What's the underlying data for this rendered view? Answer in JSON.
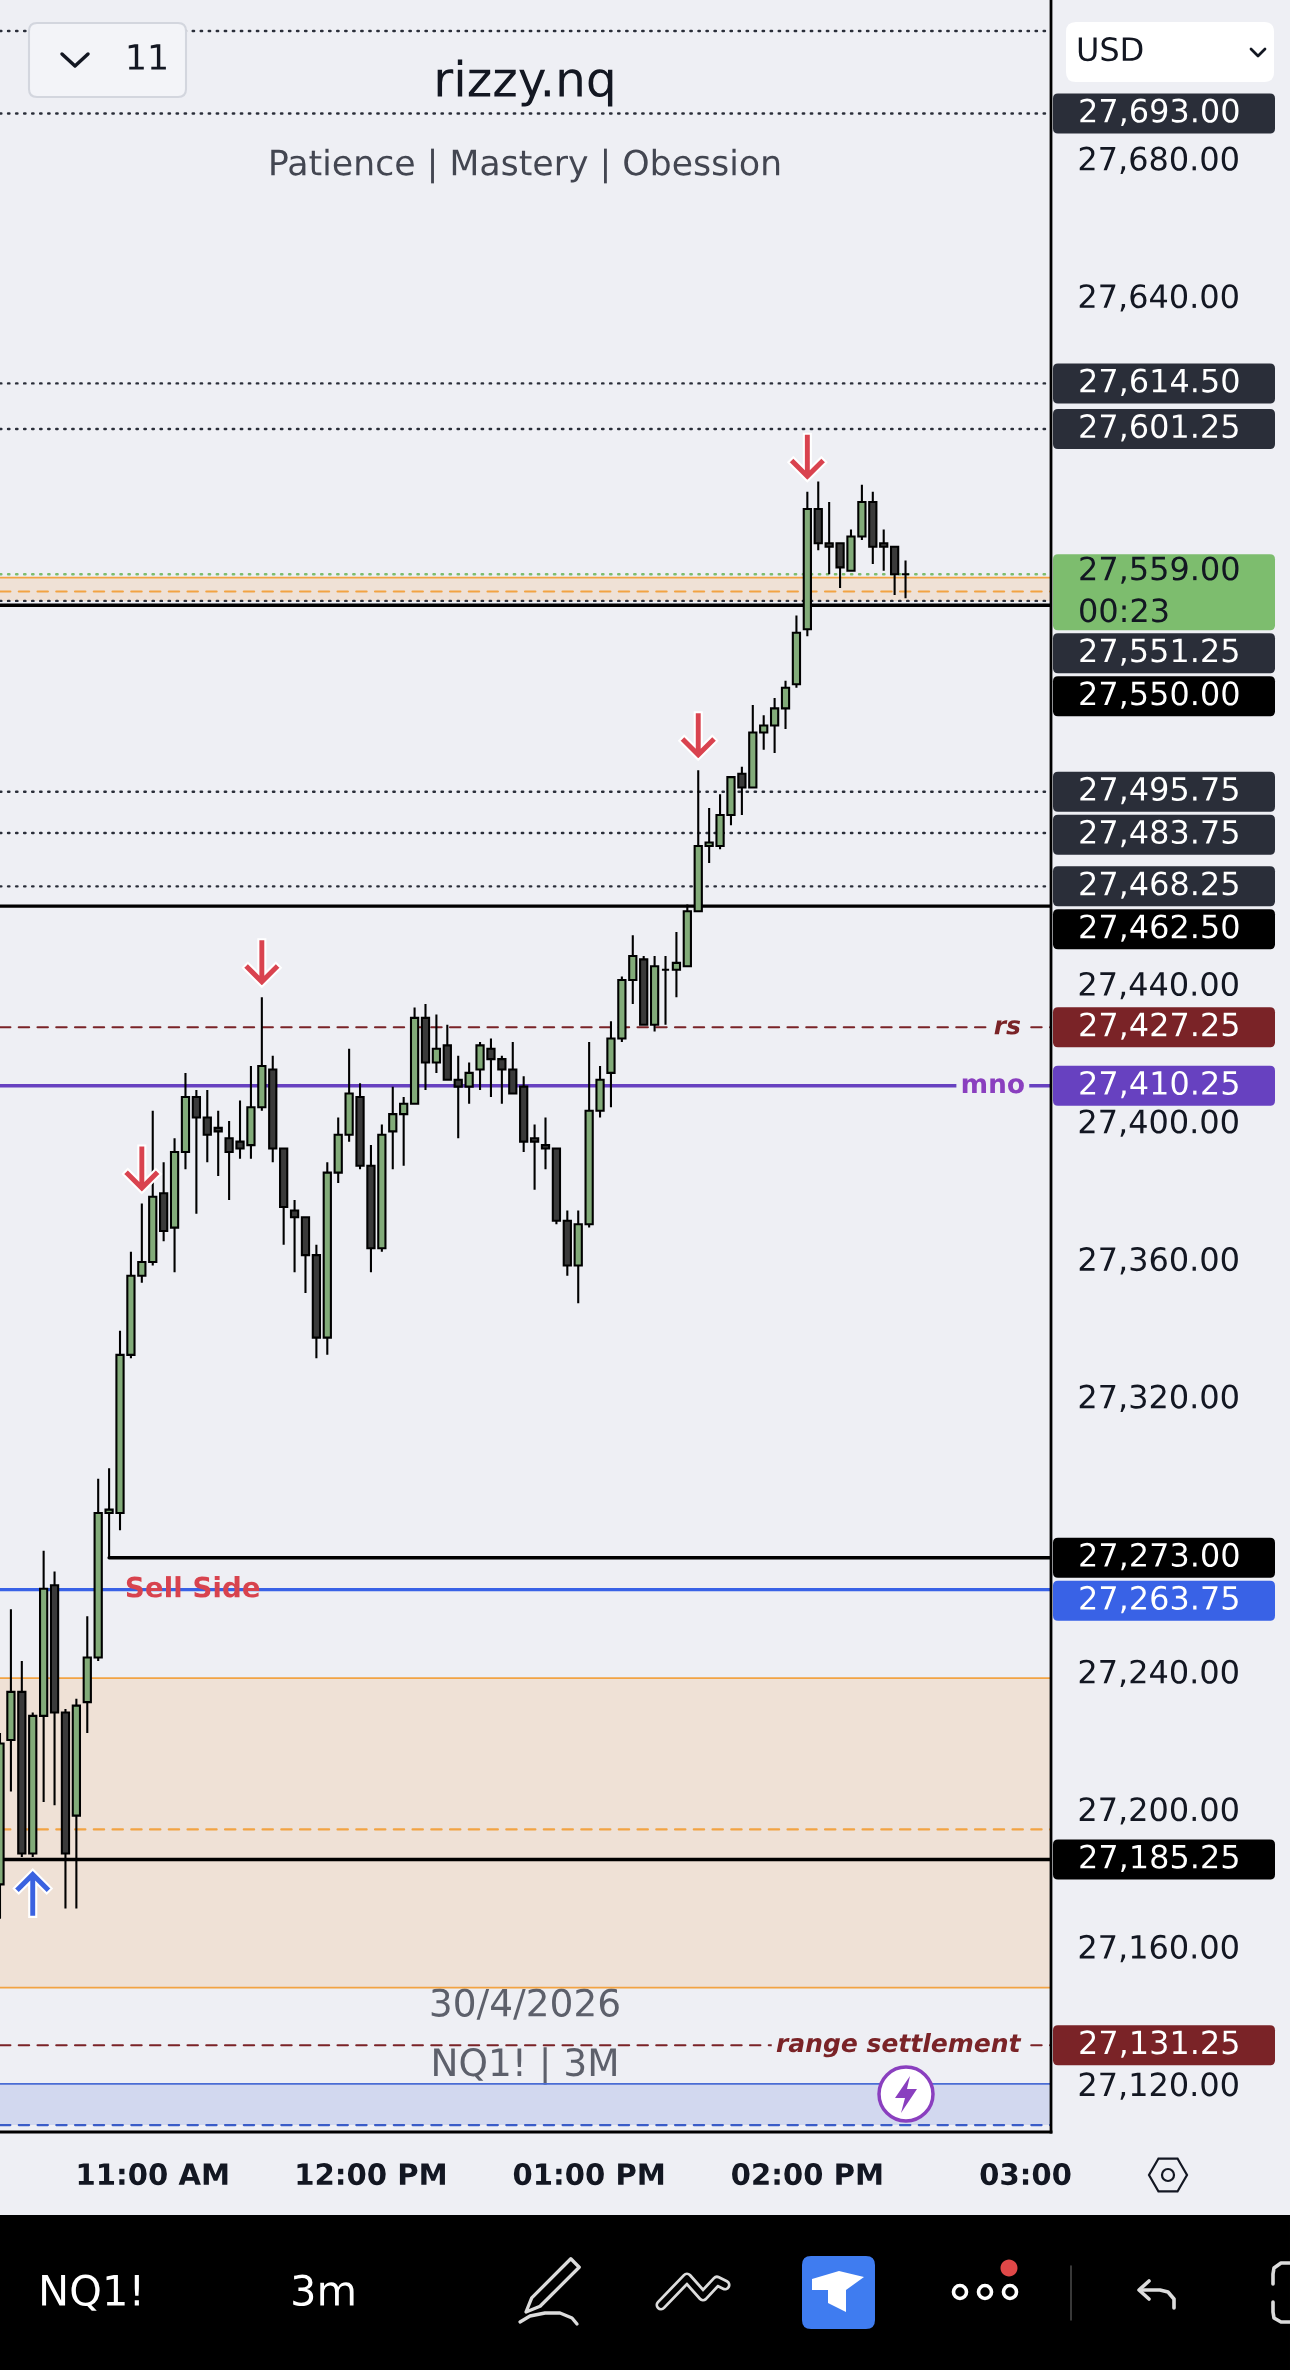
{
  "chart_data": {
    "type": "candlestick",
    "title": "rizzy.nq",
    "subtitle": "Patience | Mastery | Obession",
    "x": [
      "2026-04-30T10:18",
      "2026-04-30T10:21",
      "2026-04-30T10:24",
      "2026-04-30T10:27",
      "2026-04-30T10:30",
      "2026-04-30T10:33",
      "2026-04-30T10:36",
      "2026-04-30T10:39",
      "2026-04-30T10:42",
      "2026-04-30T10:45",
      "2026-04-30T10:48",
      "2026-04-30T10:51",
      "2026-04-30T10:54",
      "2026-04-30T10:57",
      "2026-04-30T11:00",
      "2026-04-30T11:03",
      "2026-04-30T11:06",
      "2026-04-30T11:09",
      "2026-04-30T11:12",
      "2026-04-30T11:15",
      "2026-04-30T11:18",
      "2026-04-30T11:21",
      "2026-04-30T11:24",
      "2026-04-30T11:27",
      "2026-04-30T11:30",
      "2026-04-30T11:33",
      "2026-04-30T11:36",
      "2026-04-30T11:39",
      "2026-04-30T11:42",
      "2026-04-30T11:45",
      "2026-04-30T11:48",
      "2026-04-30T11:51",
      "2026-04-30T11:54",
      "2026-04-30T11:57",
      "2026-04-30T12:00",
      "2026-04-30T12:03",
      "2026-04-30T12:06",
      "2026-04-30T12:09",
      "2026-04-30T12:12",
      "2026-04-30T12:15",
      "2026-04-30T12:18",
      "2026-04-30T12:21",
      "2026-04-30T12:24",
      "2026-04-30T12:27",
      "2026-04-30T12:30",
      "2026-04-30T12:33",
      "2026-04-30T12:36",
      "2026-04-30T12:39",
      "2026-04-30T12:42",
      "2026-04-30T12:45",
      "2026-04-30T12:48",
      "2026-04-30T12:51",
      "2026-04-30T12:54",
      "2026-04-30T12:57",
      "2026-04-30T13:00",
      "2026-04-30T13:03",
      "2026-04-30T13:06",
      "2026-04-30T13:09",
      "2026-04-30T13:12",
      "2026-04-30T13:15",
      "2026-04-30T13:18",
      "2026-04-30T13:21",
      "2026-04-30T13:24",
      "2026-04-30T13:27",
      "2026-04-30T13:30",
      "2026-04-30T13:33",
      "2026-04-30T13:36",
      "2026-04-30T13:39",
      "2026-04-30T13:42",
      "2026-04-30T13:45",
      "2026-04-30T13:48",
      "2026-04-30T13:51",
      "2026-04-30T13:54",
      "2026-04-30T13:57",
      "2026-04-30T14:00",
      "2026-04-30T14:03",
      "2026-04-30T14:06",
      "2026-04-30T14:09",
      "2026-04-30T14:12",
      "2026-04-30T14:15",
      "2026-04-30T14:18",
      "2026-04-30T14:21",
      "2026-04-30T14:24",
      "2026-04-30T14:27"
    ],
    "ohlc": [
      [
        27178,
        27222,
        27168,
        27219
      ],
      [
        27220,
        27258,
        27205,
        27234
      ],
      [
        27234,
        27243,
        27186,
        27187
      ],
      [
        27187,
        27228,
        27186,
        27227
      ],
      [
        27227,
        27275,
        27202,
        27264
      ],
      [
        27265,
        27269,
        27201,
        27228
      ],
      [
        27228,
        27229,
        27171,
        27187
      ],
      [
        27198,
        27232,
        27171,
        27230
      ],
      [
        27231,
        27256,
        27222,
        27244
      ],
      [
        27244,
        27296,
        27243,
        27286
      ],
      [
        27286,
        27299,
        27273,
        27287
      ],
      [
        27286,
        27339,
        27281,
        27332
      ],
      [
        27332,
        27362,
        27331,
        27355
      ],
      [
        27355,
        27376,
        27353,
        27359
      ],
      [
        27359,
        27403,
        27358,
        27378
      ],
      [
        27379,
        27388,
        27365,
        27368
      ],
      [
        27369,
        27395,
        27356,
        27391
      ],
      [
        27391,
        27414,
        27386,
        27407
      ],
      [
        27407,
        27409,
        27373,
        27401
      ],
      [
        27401,
        27409,
        27388,
        27396
      ],
      [
        27398,
        27403,
        27384,
        27397
      ],
      [
        27395,
        27400,
        27377,
        27391
      ],
      [
        27394,
        27406,
        27389,
        27392
      ],
      [
        27393,
        27416,
        27389,
        27404
      ],
      [
        27404,
        27436,
        27403,
        27416
      ],
      [
        27415,
        27419,
        27388,
        27392
      ],
      [
        27392,
        27392,
        27364,
        27375
      ],
      [
        27374,
        27377,
        27356,
        27372
      ],
      [
        27372,
        27372,
        27350,
        27361
      ],
      [
        27361,
        27364,
        27331,
        27337
      ],
      [
        27337,
        27388,
        27332,
        27385
      ],
      [
        27385,
        27401,
        27382,
        27396
      ],
      [
        27396,
        27421,
        27394,
        27408
      ],
      [
        27407,
        27411,
        27386,
        27387
      ],
      [
        27387,
        27393,
        27356,
        27363
      ],
      [
        27363,
        27399,
        27362,
        27396
      ],
      [
        27397,
        27410,
        27386,
        27402
      ],
      [
        27402,
        27407,
        27387,
        27405
      ],
      [
        27405,
        27433,
        27405,
        27430
      ],
      [
        27430,
        27434,
        27409,
        27417
      ],
      [
        27417,
        27431,
        27414,
        27421
      ],
      [
        27422,
        27428,
        27412,
        27412
      ],
      [
        27412,
        27419,
        27395,
        27410
      ],
      [
        27410,
        27417,
        27405,
        27414
      ],
      [
        27415,
        27423,
        27409,
        27422
      ],
      [
        27421,
        27424,
        27407,
        27418
      ],
      [
        27418,
        27419,
        27405,
        27415
      ],
      [
        27415,
        27423,
        27408,
        27408
      ],
      [
        27410,
        27413,
        27391,
        27394
      ],
      [
        27395,
        27399,
        27380,
        27394
      ],
      [
        27393,
        27401,
        27386,
        27392
      ],
      [
        27392,
        27392,
        27370,
        27371
      ],
      [
        27371,
        27374,
        27355,
        27358
      ],
      [
        27358,
        27374,
        27347,
        27370
      ],
      [
        27370,
        27423,
        27369,
        27403
      ],
      [
        27403,
        27416,
        27401,
        27412
      ],
      [
        27414,
        27429,
        27404,
        27424
      ],
      [
        27424,
        27442,
        27423,
        27441
      ],
      [
        27441,
        27454,
        27434,
        27448
      ],
      [
        27447,
        27448,
        27428,
        27428
      ],
      [
        27428,
        27448,
        27426,
        27445
      ],
      [
        27444,
        27448,
        27428,
        27444
      ],
      [
        27444,
        27455,
        27436,
        27446
      ],
      [
        27445,
        27463,
        27445,
        27461
      ],
      [
        27461,
        27502,
        27461,
        27480
      ],
      [
        27480,
        27491,
        27475,
        27481
      ],
      [
        27480,
        27495,
        27479,
        27489
      ],
      [
        27489,
        27500,
        27486,
        27500
      ],
      [
        27501,
        27503,
        27489,
        27497
      ],
      [
        27497,
        27521,
        27497,
        27513
      ],
      [
        27513,
        27518,
        27508,
        27515
      ],
      [
        27515,
        27523,
        27507,
        27520
      ],
      [
        27520,
        27528,
        27514,
        27526
      ],
      [
        27527,
        27547,
        27526,
        27542
      ],
      [
        27543,
        27583,
        27541,
        27578
      ],
      [
        27578,
        27586,
        27566,
        27568
      ],
      [
        27568,
        27580,
        27559,
        27567
      ],
      [
        27568,
        27568,
        27555,
        27561
      ],
      [
        27560,
        27572,
        27560,
        27570
      ],
      [
        27570,
        27585,
        27569,
        27580
      ],
      [
        27580,
        27583,
        27562,
        27567
      ],
      [
        27568,
        27572,
        27560,
        27567
      ],
      [
        27567,
        27567,
        27553,
        27559
      ],
      [
        27559,
        27563,
        27552,
        27559
      ]
    ],
    "series": [
      {
        "type": "line",
        "name": "27,273.00",
        "color": "#000000",
        "x": [
          "2026-04-30T10:48",
          "2026-04-30T15:07"
        ],
        "values": [
          27273,
          27273
        ]
      }
    ],
    "xlim": [
      "2026-04-30T10:18",
      "2026-04-30T15:07"
    ],
    "xticks": [
      {
        "value": "2026-04-30T11:00",
        "label": "11:00 AM"
      },
      {
        "value": "2026-04-30T12:00",
        "label": "12:00 PM"
      },
      {
        "value": "2026-04-30T13:00",
        "label": "01:00 PM"
      },
      {
        "value": "2026-04-30T14:00",
        "label": "02:00 PM"
      },
      {
        "value": "2026-04-30T15:00",
        "label": "03:00"
      }
    ],
    "ylim": [
      27106,
      27726
    ],
    "yticks": [
      {
        "value": 27680,
        "label": "27,680.00"
      },
      {
        "value": 27640,
        "label": "27,640.00"
      },
      {
        "value": 27440,
        "label": "27,440.00"
      },
      {
        "value": 27400,
        "label": "27,400.00"
      },
      {
        "value": 27360,
        "label": "27,360.00"
      },
      {
        "value": 27320,
        "label": "27,320.00"
      },
      {
        "value": 27240,
        "label": "27,240.00"
      },
      {
        "value": 27200,
        "label": "27,200.00"
      },
      {
        "value": 27160,
        "label": "27,160.00"
      },
      {
        "value": 27120,
        "label": "27,120.00"
      }
    ],
    "bands": [
      {
        "axis": "y",
        "from": 27551.25,
        "to": 27558,
        "color": "#f2a343"
      },
      {
        "axis": "y",
        "from": 27148,
        "to": 27238,
        "color": "#f2a343"
      },
      {
        "axis": "y",
        "from": 27108,
        "to": 27120,
        "color": "#4a6cd4"
      }
    ],
    "ref_lines": [
      {
        "axis": "y",
        "value": 27717,
        "color": "#2a2e39",
        "line_style": "dotted"
      },
      {
        "axis": "y",
        "value": 27693,
        "label": "27,693.00",
        "color": "#2a2e39",
        "line_style": "dotted"
      },
      {
        "axis": "y",
        "value": 27614.5,
        "label": "27,614.50",
        "color": "#2a2e39",
        "line_style": "dotted"
      },
      {
        "axis": "y",
        "value": 27601.25,
        "label": "27,601.25",
        "color": "#2a2e39",
        "line_style": "dotted"
      },
      {
        "axis": "y",
        "value": 27558,
        "color": "#f2a343",
        "line_style": "solid"
      },
      {
        "axis": "y",
        "value": 27559,
        "label": "27,559.00\n00:23",
        "color": "#7dbd6e",
        "line_style": "dotted"
      },
      {
        "axis": "y",
        "value": 27554,
        "color": "#f2a343",
        "line_style": "dashed"
      },
      {
        "axis": "y",
        "value": 27551.25,
        "label": "27,551.25",
        "color": "#2a2e39",
        "line_style": "dotted"
      },
      {
        "axis": "y",
        "value": 27550,
        "label": "27,550.00",
        "color": "#000000",
        "line_style": "solid"
      },
      {
        "axis": "y",
        "value": 27495.75,
        "label": "27,495.75",
        "color": "#2a2e39",
        "line_style": "dotted"
      },
      {
        "axis": "y",
        "value": 27483.75,
        "label": "27,483.75",
        "color": "#2a2e39",
        "line_style": "dotted"
      },
      {
        "axis": "y",
        "value": 27468.25,
        "label": "27,468.25",
        "color": "#2a2e39",
        "line_style": "dotted"
      },
      {
        "axis": "y",
        "value": 27462.5,
        "label": "27,462.50",
        "color": "#000000",
        "line_style": "solid"
      },
      {
        "axis": "y",
        "value": 27427.25,
        "label": "27,427.25",
        "color": "#7a2327",
        "line_style": "dashed"
      },
      {
        "axis": "y",
        "value": 27410.25,
        "label": "27,410.25",
        "color": "#6741c0",
        "line_style": "solid"
      },
      {
        "axis": "y",
        "value": 27263.75,
        "label": "27,263.75",
        "color": "#3962e6",
        "line_style": "solid"
      },
      {
        "axis": "y",
        "value": 27238,
        "color": "#f2a343",
        "line_style": "solid"
      },
      {
        "axis": "y",
        "value": 27194,
        "color": "#f2a343",
        "line_style": "dashed"
      },
      {
        "axis": "y",
        "value": 27185.25,
        "label": "27,185.25",
        "color": "#000000",
        "line_style": "solid"
      },
      {
        "axis": "y",
        "value": 27148,
        "color": "#f2a343",
        "line_style": "solid"
      },
      {
        "axis": "y",
        "value": 27131.25,
        "label": "27,131.25",
        "color": "#7a2327",
        "line_style": "dashed"
      },
      {
        "axis": "y",
        "value": 27120,
        "color": "#4a6cd4",
        "line_style": "solid"
      },
      {
        "axis": "y",
        "value": 27108,
        "color": "#3a5cc8",
        "line_style": "dashed"
      }
    ],
    "annotations": [
      "30/4/2026",
      "NQ1! | 3M",
      {
        "text": "Sell Side",
        "x": "2026-04-30T11:11",
        "y": 27263.75
      },
      {
        "text": "rs",
        "x": "2026-04-30T14:55",
        "y": 27427.25
      },
      {
        "text": "mno",
        "x": "2026-04-30T14:51",
        "y": 27410.25
      },
      {
        "text": "range settlement",
        "x": "2026-04-30T14:25",
        "y": 27131.25
      },
      "USD",
      "11",
      "NQ1!",
      "3m"
    ]
  }
}
